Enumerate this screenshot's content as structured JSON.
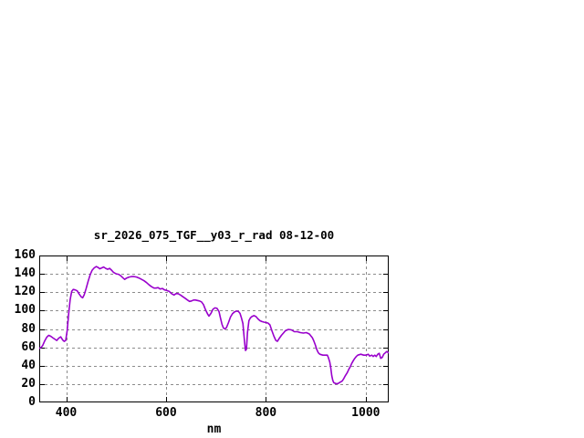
{
  "window": {
    "background": "#ffffff"
  },
  "chart": {
    "title": "sr_2026_075_TGF__y03_r_rad 08-12-00",
    "xlabel": "nm",
    "colors": {
      "line": "#9900cc",
      "grid": "#8c8c8c",
      "frame": "#000000",
      "text": "#000000"
    }
  },
  "chart_data": {
    "type": "line",
    "title": "sr_2026_075_TGF__y03_r_rad 08-12-00",
    "xlabel": "nm",
    "ylabel": "",
    "xlim": [
      346,
      1046
    ],
    "ylim": [
      0,
      160
    ],
    "x_ticks": [
      400,
      600,
      800,
      1000
    ],
    "y_ticks": [
      0,
      20,
      40,
      60,
      80,
      100,
      120,
      140,
      160
    ],
    "grid": true,
    "legend": false,
    "series": [
      {
        "name": "sr_2026_075_TGF__y03_r_rad",
        "color": "#9900cc",
        "x": [
          347,
          350,
          353,
          357,
          361,
          365,
          369,
          373,
          377,
          381,
          385,
          389,
          393,
          396,
          399,
          402,
          405,
          408,
          411,
          414,
          418,
          422,
          426,
          430,
          433,
          436,
          440,
          444,
          448,
          452,
          456,
          460,
          464,
          467,
          471,
          475,
          479,
          483,
          487,
          491,
          495,
          500,
          505,
          509,
          513,
          517,
          521,
          526,
          531,
          536,
          541,
          546,
          551,
          556,
          561,
          566,
          571,
          576,
          580,
          584,
          588,
          593,
          597,
          601,
          606,
          611,
          616,
          620,
          624,
          629,
          634,
          638,
          643,
          647,
          651,
          655,
          659,
          663,
          667,
          671,
          675,
          679,
          683,
          686,
          690,
          694,
          698,
          702,
          706,
          709,
          712,
          715,
          718,
          721,
          725,
          729,
          733,
          737,
          741,
          745,
          748,
          751,
          754,
          757,
          759,
          761,
          763,
          766,
          769,
          772,
          776,
          780,
          784,
          788,
          792,
          796,
          800,
          804,
          808,
          812,
          816,
          820,
          823,
          827,
          831,
          835,
          839,
          845,
          851,
          857,
          863,
          869,
          875,
          881,
          887,
          893,
          896,
          899,
          902,
          905,
          908,
          914,
          920,
          923,
          925,
          928,
          930,
          932,
          934,
          936,
          940,
          944,
          947,
          950,
          953,
          956,
          959,
          963,
          966,
          969,
          972,
          975,
          978,
          981,
          984,
          990,
          996,
          1000,
          1005,
          1008,
          1012,
          1015,
          1018,
          1021,
          1024,
          1027,
          1030,
          1033,
          1036,
          1039,
          1042,
          1046
        ],
        "y": [
          59,
          60,
          62,
          67,
          71,
          73,
          72,
          70.5,
          69,
          67.5,
          70,
          71.5,
          68,
          66.5,
          67.5,
          78,
          97,
          112,
          121,
          123,
          122.5,
          121.5,
          118,
          115,
          114,
          117,
          124,
          132,
          139,
          144,
          146.5,
          148,
          147,
          145.5,
          146.5,
          147.5,
          146,
          145,
          146,
          144,
          141.5,
          140,
          139.5,
          138,
          136,
          134,
          135.5,
          136.5,
          137,
          137,
          136.5,
          135.5,
          134,
          132.5,
          130.5,
          128,
          126,
          124.5,
          124.5,
          125,
          123.5,
          124,
          122.5,
          122,
          121,
          118.5,
          117,
          118.5,
          118.5,
          117,
          115,
          113.5,
          111.5,
          110,
          110.5,
          111.5,
          111.5,
          111,
          110.5,
          109.5,
          106.5,
          101,
          96.5,
          94,
          97,
          101.5,
          103,
          102.5,
          99,
          92,
          85,
          81,
          80,
          81.5,
          87,
          93,
          96.5,
          98.5,
          99.5,
          99,
          97,
          92,
          86,
          67,
          56.5,
          58,
          76,
          89,
          92,
          93.5,
          94.5,
          93.5,
          91,
          89,
          88,
          87.5,
          87,
          86.5,
          84.5,
          78,
          72,
          67.5,
          66.5,
          70,
          73,
          75.5,
          78,
          79.5,
          79,
          77,
          77,
          76,
          75.5,
          76,
          74.5,
          70.5,
          67,
          62.5,
          57.5,
          54,
          52.5,
          51.5,
          51.5,
          51.5,
          49,
          44,
          37.5,
          29,
          24,
          21.5,
          20.5,
          20.5,
          21.5,
          22.5,
          23.5,
          26,
          29,
          32.5,
          36,
          39,
          42.5,
          45.5,
          48,
          50,
          51.5,
          52.5,
          51.5,
          51.5,
          52.5,
          50.5,
          51.5,
          50,
          51.5,
          50,
          52.5,
          53.5,
          48,
          49,
          52.5,
          54,
          55.5,
          54
        ]
      }
    ]
  }
}
